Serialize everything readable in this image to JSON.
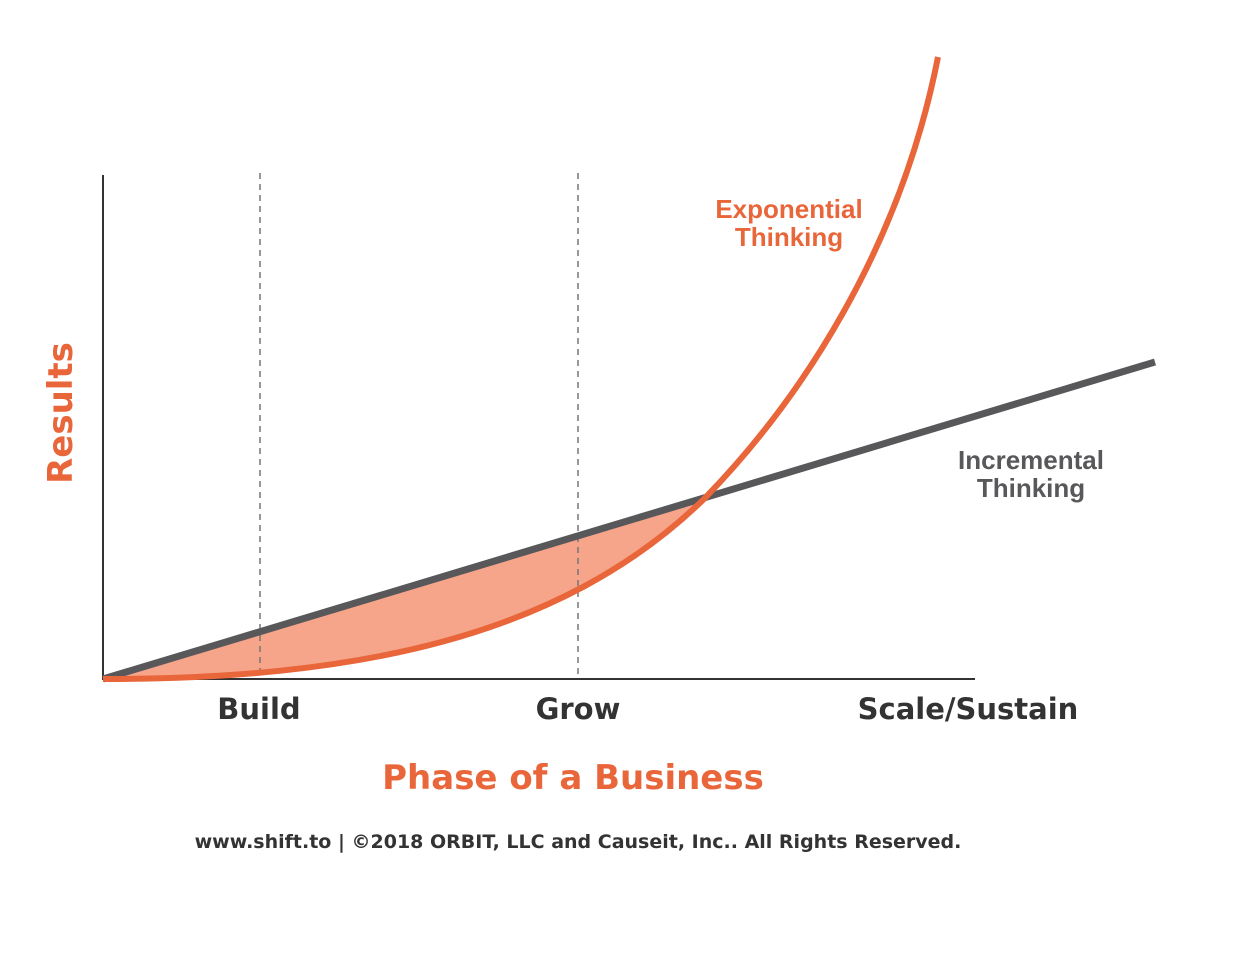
{
  "axis": {
    "y_label": "Results",
    "x_label": "Phase of a Business",
    "phases": [
      "Build",
      "Grow",
      "Scale/Sustain"
    ]
  },
  "curves": {
    "exponential": [
      "Exponential",
      "Thinking"
    ],
    "incremental": [
      "Incremental",
      "Thinking"
    ]
  },
  "footer": "www.shift.to | ©2018 ORBIT, LLC and Causeit, Inc.. All Rights Reserved."
}
